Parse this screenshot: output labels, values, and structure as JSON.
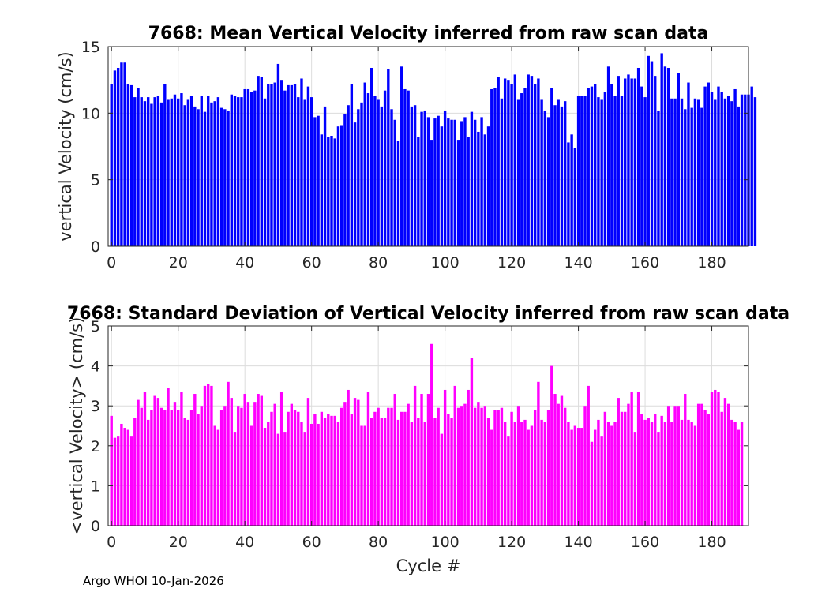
{
  "chart_data": [
    {
      "type": "bar",
      "title": "7668: Mean Vertical Velocity inferred from raw scan data",
      "xlabel": "",
      "ylabel": "vertical Velocity (cm/s)",
      "xlim": [
        -1,
        191
      ],
      "ylim": [
        0,
        15
      ],
      "xticks": [
        0,
        20,
        40,
        60,
        80,
        100,
        120,
        140,
        160,
        180
      ],
      "yticks": [
        0,
        5,
        10,
        15
      ],
      "grid": true,
      "color": "#0000ff",
      "x_start": 0,
      "values": [
        12.2,
        13.2,
        13.4,
        13.8,
        13.8,
        12.2,
        12.1,
        11.2,
        11.9,
        11.2,
        10.9,
        11.2,
        10.7,
        11.2,
        11.3,
        10.8,
        12.2,
        11.0,
        11.1,
        11.4,
        11.1,
        11.5,
        10.6,
        11.0,
        11.3,
        10.5,
        10.3,
        11.3,
        10.1,
        11.3,
        10.8,
        10.9,
        11.2,
        10.4,
        10.3,
        10.2,
        11.4,
        11.3,
        11.2,
        11.2,
        11.8,
        11.8,
        11.6,
        11.7,
        12.8,
        12.7,
        11.1,
        12.2,
        12.2,
        12.3,
        13.7,
        12.5,
        11.7,
        12.1,
        12.1,
        12.2,
        11.2,
        12.6,
        11.0,
        12.0,
        11.2,
        9.7,
        9.8,
        8.4,
        10.5,
        8.2,
        8.3,
        8.1,
        9.0,
        9.1,
        9.9,
        10.6,
        12.2,
        9.3,
        10.3,
        10.8,
        12.3,
        11.5,
        13.4,
        11.3,
        11.0,
        10.5,
        11.7,
        13.3,
        10.3,
        9.5,
        7.9,
        13.5,
        11.8,
        11.7,
        10.5,
        10.6,
        8.2,
        10.1,
        10.2,
        9.7,
        8.0,
        9.6,
        9.8,
        9.0,
        10.2,
        9.6,
        9.5,
        9.5,
        8.0,
        9.4,
        9.7,
        8.2,
        10.1,
        9.5,
        8.6,
        9.7,
        8.4,
        9.0,
        11.8,
        11.9,
        12.7,
        11.1,
        12.6,
        12.5,
        12.2,
        12.9,
        11.0,
        11.5,
        11.9,
        12.9,
        12.8,
        12.2,
        12.6,
        11.0,
        10.2,
        9.7,
        11.9,
        10.6,
        11.0,
        10.5,
        10.9,
        7.8,
        8.4,
        7.4,
        11.3,
        11.3,
        11.3,
        11.9,
        12.0,
        12.2,
        11.2,
        11.0,
        11.6,
        13.5,
        12.2,
        11.3,
        12.8,
        11.3,
        12.6,
        12.9,
        12.6,
        12.6,
        13.4,
        12.0,
        11.2,
        14.3,
        13.9,
        12.8,
        10.2,
        14.5,
        13.5,
        13.4,
        11.1,
        11.1,
        13.0,
        11.1,
        10.3,
        12.3,
        10.4,
        11.1,
        11.0,
        10.4,
        12.0,
        12.3,
        11.6,
        11.0,
        12.0,
        11.6,
        11.1,
        11.3,
        10.9,
        11.8,
        10.5,
        11.4,
        11.4,
        11.4,
        12.0,
        11.2
      ]
    },
    {
      "type": "bar",
      "title": "7668: Standard Deviation of Vertical Velocity inferred from raw scan data",
      "xlabel": "Cycle #",
      "ylabel": "<vertical Velocity> (cm/s)",
      "xlim": [
        -1,
        191
      ],
      "ylim": [
        0,
        5
      ],
      "xticks": [
        0,
        20,
        40,
        60,
        80,
        100,
        120,
        140,
        160,
        180
      ],
      "yticks": [
        0,
        1,
        2,
        3,
        4,
        5
      ],
      "grid": true,
      "color": "#ff00ff",
      "x_start": 0,
      "values": [
        2.75,
        2.2,
        2.25,
        2.55,
        2.45,
        2.4,
        2.25,
        2.7,
        3.15,
        2.95,
        3.35,
        2.65,
        2.9,
        3.25,
        3.2,
        2.95,
        2.9,
        3.45,
        2.9,
        3.1,
        2.9,
        3.35,
        2.7,
        2.65,
        2.9,
        3.3,
        2.8,
        3.0,
        3.5,
        3.55,
        3.5,
        2.5,
        2.4,
        2.9,
        3.0,
        3.6,
        3.2,
        2.35,
        3.0,
        2.95,
        3.3,
        3.1,
        2.5,
        3.1,
        3.3,
        3.25,
        2.45,
        2.6,
        2.85,
        3.05,
        2.3,
        3.35,
        2.35,
        2.85,
        3.05,
        2.9,
        2.85,
        2.6,
        2.35,
        3.2,
        2.55,
        2.8,
        2.55,
        2.85,
        2.7,
        2.8,
        2.75,
        2.75,
        2.6,
        2.95,
        3.1,
        3.4,
        2.8,
        3.2,
        3.15,
        2.5,
        2.5,
        3.35,
        2.7,
        2.85,
        2.95,
        2.7,
        2.7,
        2.95,
        2.95,
        3.3,
        2.65,
        2.85,
        2.85,
        3.05,
        2.6,
        3.5,
        2.7,
        3.3,
        2.6,
        3.3,
        4.55,
        2.7,
        2.95,
        2.3,
        3.4,
        2.8,
        2.7,
        3.5,
        2.95,
        3.0,
        3.05,
        3.4,
        4.2,
        2.95,
        3.1,
        2.95,
        3.0,
        2.7,
        2.4,
        2.9,
        2.9,
        2.95,
        2.6,
        2.25,
        2.85,
        2.6,
        3.0,
        2.6,
        2.65,
        2.4,
        2.5,
        2.9,
        3.6,
        2.65,
        2.6,
        2.9,
        4.0,
        3.3,
        3.05,
        3.25,
        2.95,
        2.6,
        2.4,
        2.5,
        2.45,
        2.45,
        3.0,
        3.5,
        2.1,
        2.4,
        2.65,
        2.25,
        2.85,
        2.6,
        2.5,
        2.6,
        3.2,
        2.85,
        2.85,
        3.05,
        3.35,
        2.35,
        3.35,
        2.8,
        2.65,
        2.7,
        2.6,
        2.8,
        2.35,
        2.75,
        2.6,
        3.0,
        2.6,
        3.0,
        3.0,
        2.65,
        3.3,
        2.65,
        2.6,
        2.5,
        3.05,
        3.05,
        2.9,
        2.8,
        3.35,
        3.4,
        3.35,
        2.85,
        3.2,
        3.05,
        2.65,
        2.6,
        2.4,
        2.6
      ]
    }
  ],
  "footer": {
    "text": "Argo WHOI 10-Jan-2026"
  }
}
